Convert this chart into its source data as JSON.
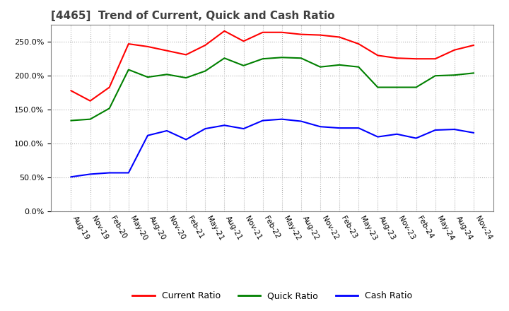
{
  "title": "[4465]  Trend of Current, Quick and Cash Ratio",
  "title_color": "#404040",
  "background_color": "#ffffff",
  "plot_background": "#ffffff",
  "grid_color": "#b0b0b0",
  "ylim": [
    0.0,
    275.0
  ],
  "yticks": [
    0.0,
    50.0,
    100.0,
    150.0,
    200.0,
    250.0
  ],
  "x_labels": [
    "Aug-19",
    "Nov-19",
    "Feb-20",
    "May-20",
    "Aug-20",
    "Nov-20",
    "Feb-21",
    "May-21",
    "Aug-21",
    "Nov-21",
    "Feb-22",
    "May-22",
    "Aug-22",
    "Nov-22",
    "Feb-23",
    "May-23",
    "Aug-23",
    "Nov-23",
    "Feb-24",
    "May-24",
    "Aug-24",
    "Nov-24"
  ],
  "current_ratio": [
    178,
    163,
    183,
    247,
    243,
    237,
    231,
    245,
    266,
    251,
    264,
    264,
    261,
    260,
    257,
    247,
    230,
    226,
    225,
    225,
    238,
    245
  ],
  "quick_ratio": [
    134,
    136,
    152,
    209,
    198,
    202,
    197,
    207,
    226,
    215,
    225,
    227,
    226,
    213,
    216,
    213,
    183,
    183,
    183,
    200,
    201,
    204
  ],
  "cash_ratio": [
    51,
    55,
    57,
    57,
    112,
    119,
    106,
    122,
    127,
    122,
    134,
    136,
    133,
    125,
    123,
    123,
    110,
    114,
    108,
    120,
    121,
    116
  ],
  "current_color": "#ff0000",
  "quick_color": "#008000",
  "cash_color": "#0000ff",
  "line_width": 1.5,
  "legend_labels": [
    "Current Ratio",
    "Quick Ratio",
    "Cash Ratio"
  ]
}
